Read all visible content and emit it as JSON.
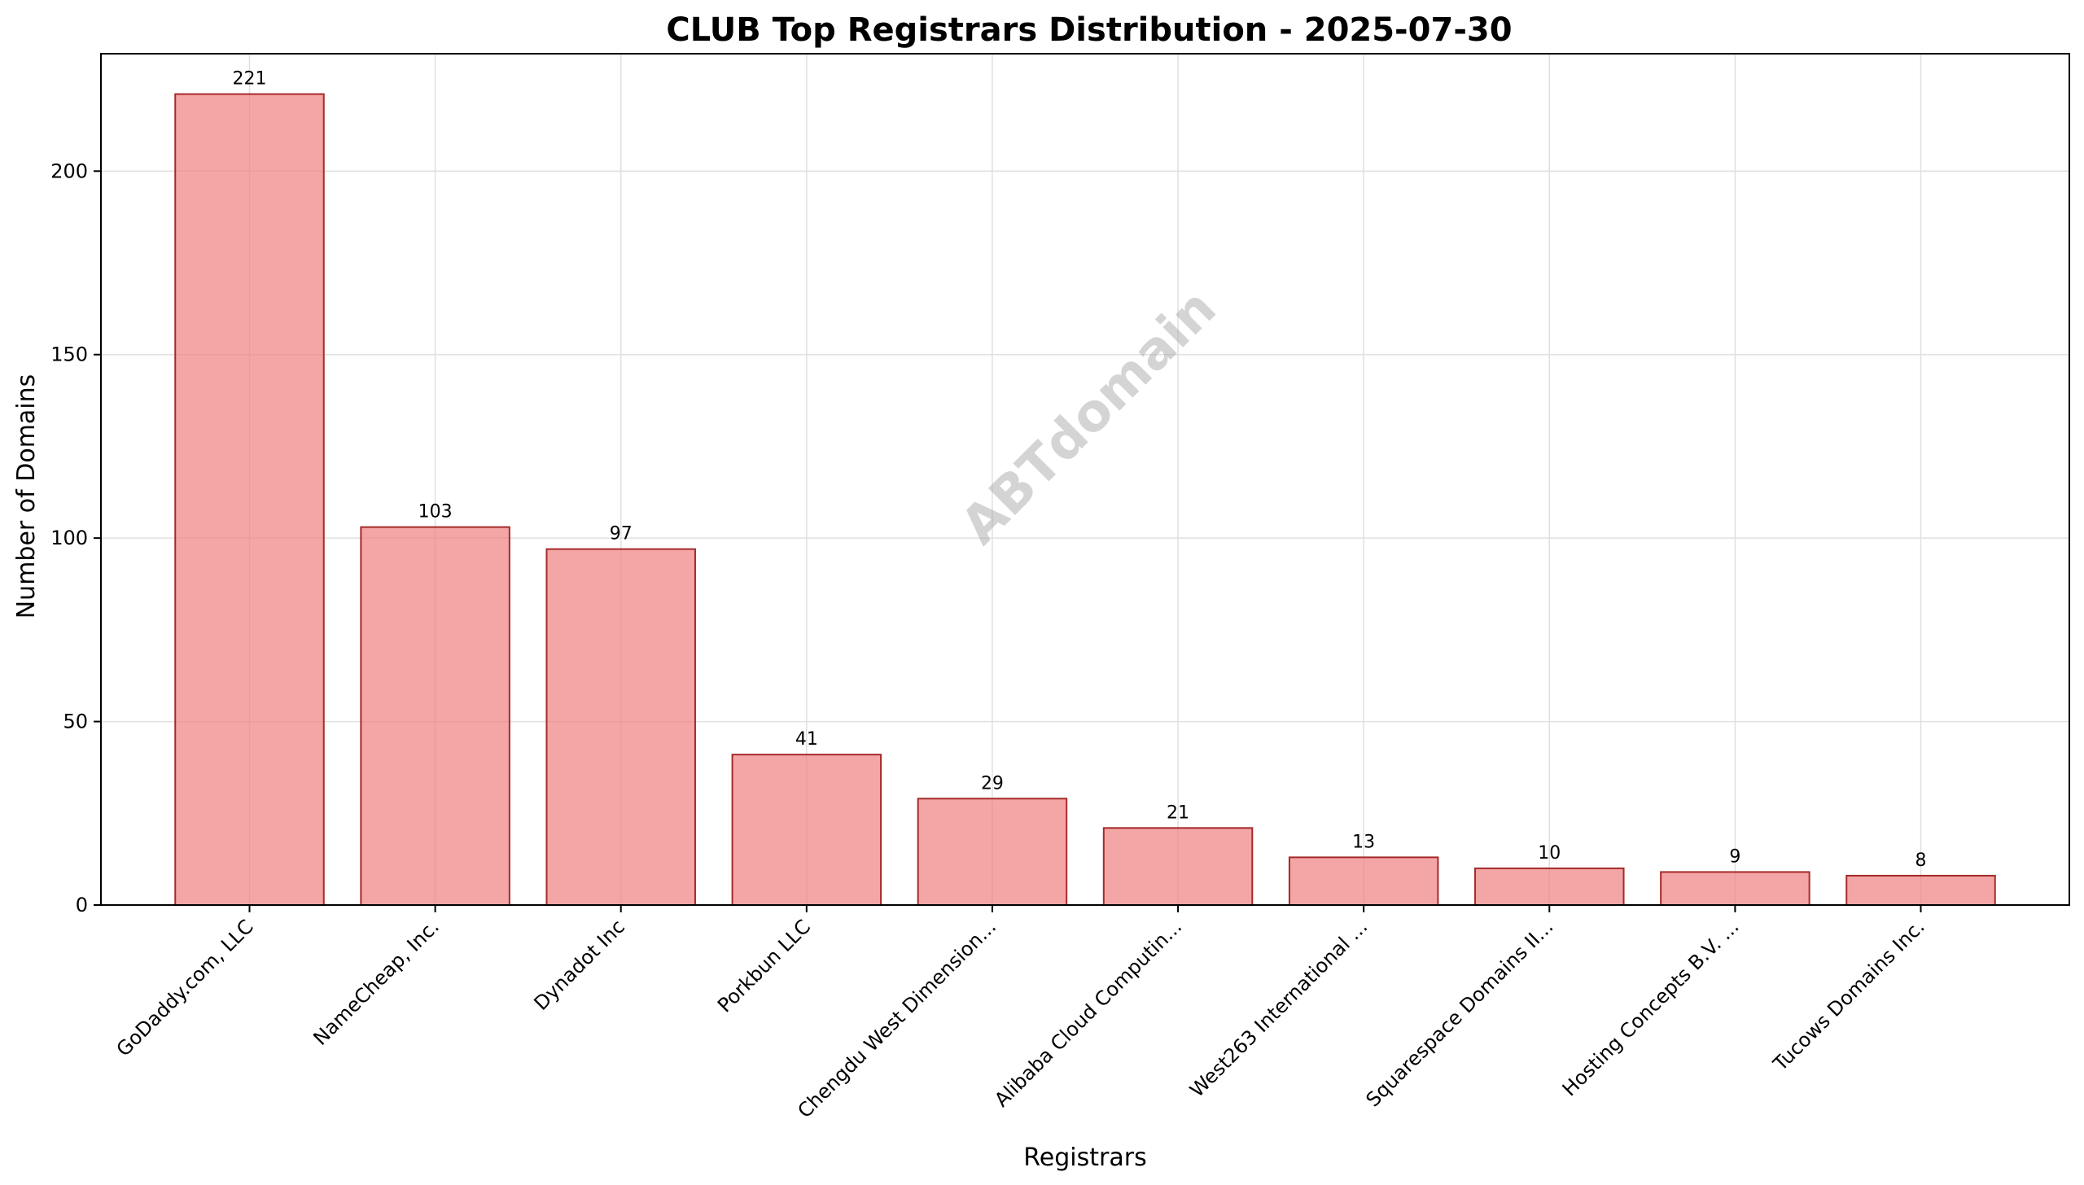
{
  "chart_data": {
    "type": "bar",
    "title": "CLUB Top Registrars Distribution - 2025-07-30",
    "xlabel": "Registrars",
    "ylabel": "Number of Domains",
    "categories": [
      "GoDaddy.com, LLC",
      "NameCheap, Inc.",
      "Dynadot Inc",
      "Porkbun LLC",
      "Chengdu West Dimension...",
      "Alibaba Cloud Computin...",
      "West263 International ...",
      "Squarespace Domains II...",
      "Hosting Concepts B.V. ...",
      "Tucows Domains Inc."
    ],
    "values": [
      221,
      103,
      97,
      41,
      29,
      21,
      13,
      10,
      9,
      8
    ],
    "data_labels": [
      "221",
      "103",
      "97",
      "41",
      "29",
      "21",
      "13",
      "10",
      "9",
      "8"
    ],
    "ylim": [
      0,
      232
    ],
    "yticks": [
      0,
      50,
      100,
      150,
      200
    ],
    "ytick_labels": [
      "0",
      "50",
      "100",
      "150",
      "200"
    ],
    "grid": true,
    "legend": "none",
    "colors": {
      "bar_fill": "#f08080",
      "bar_edge": "#a52a2a",
      "grid": "#e0e0e0",
      "axis": "#000000"
    }
  },
  "watermark": {
    "text": "ABTdomain"
  }
}
